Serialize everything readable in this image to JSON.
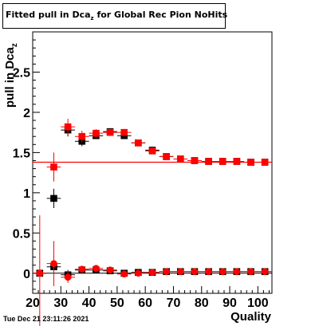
{
  "header": {
    "title_main": "Fitted pull in Dca",
    "title_sub": "z",
    "title_rest": " for Global Rec Pion NoHits"
  },
  "footer": {
    "timestamp": "Tue Dec 21 23:11:26 2021"
  },
  "colors": {
    "black_series": "#000000",
    "red_series": "#ff0000",
    "reference_line": "#ff0000"
  },
  "chart_data": {
    "type": "scatter",
    "title": "Fitted pull in Dca_z for Global Rec Pion NoHits",
    "xlabel": "Quality",
    "ylabel": "pull in Dca_z",
    "xlim": [
      20,
      105
    ],
    "ylim": [
      -0.25,
      3.0
    ],
    "x_ticks": [
      20,
      30,
      40,
      50,
      60,
      70,
      80,
      90,
      100
    ],
    "x_tick_labels": [
      "20",
      "30",
      "40",
      "50",
      "60",
      "70",
      "80",
      "90",
      "100"
    ],
    "y_ticks": [
      0,
      0.5,
      1,
      1.5,
      2,
      2.5
    ],
    "y_tick_labels": [
      "0",
      "0.5",
      "1",
      "1.5",
      "2",
      "2.5"
    ],
    "reference_line_y": 1.38,
    "series": [
      {
        "marker": "square",
        "color": "#000000",
        "x": [
          27.5,
          32.5,
          37.5,
          42.5,
          47.5,
          52.5,
          57.5,
          62.5,
          67.5,
          72.5,
          77.5,
          82.5,
          87.5,
          92.5,
          97.5,
          102.5
        ],
        "y": [
          0.93,
          1.78,
          1.64,
          1.71,
          1.76,
          1.71,
          1.62,
          1.53,
          1.45,
          1.42,
          1.4,
          1.39,
          1.39,
          1.39,
          1.38,
          1.38
        ],
        "yerr": [
          0.12,
          0.08,
          0.06,
          0.04,
          0.04,
          0.03,
          0.03,
          0.02,
          0.02,
          0.02,
          0.01,
          0.01,
          0.01,
          0.01,
          0.01,
          0.01
        ]
      },
      {
        "marker": "square",
        "color": "#ff0000",
        "x": [
          27.5,
          32.5,
          37.5,
          42.5,
          47.5,
          52.5,
          57.5,
          62.5,
          67.5,
          72.5,
          77.5,
          82.5,
          87.5,
          92.5,
          97.5,
          102.5
        ],
        "y": [
          1.32,
          1.82,
          1.7,
          1.74,
          1.75,
          1.75,
          1.62,
          1.52,
          1.45,
          1.42,
          1.4,
          1.39,
          1.39,
          1.39,
          1.38,
          1.38
        ],
        "yerr": [
          0.18,
          0.1,
          0.07,
          0.05,
          0.04,
          0.04,
          0.03,
          0.02,
          0.02,
          0.02,
          0.01,
          0.01,
          0.01,
          0.01,
          0.01,
          0.01
        ]
      },
      {
        "marker": "square",
        "color": "#000000",
        "x": [
          22.5,
          27.5,
          32.5,
          37.5,
          42.5,
          47.5,
          52.5,
          57.5,
          62.5,
          67.5,
          72.5,
          77.5,
          82.5,
          87.5,
          92.5,
          97.5,
          102.5
        ],
        "y": [
          0.0,
          0.08,
          -0.02,
          0.04,
          0.04,
          0.03,
          0.0,
          0.01,
          0.01,
          0.02,
          0.02,
          0.02,
          0.02,
          0.02,
          0.02,
          0.02,
          0.02
        ],
        "yerr": [
          0.0,
          0.08,
          0.06,
          0.04,
          0.03,
          0.02,
          0.02,
          0.02,
          0.01,
          0.01,
          0.01,
          0.01,
          0.01,
          0.01,
          0.01,
          0.01,
          0.01
        ]
      },
      {
        "marker": "circle",
        "color": "#ff0000",
        "x": [
          22.5,
          27.5,
          32.5,
          37.5,
          42.5,
          47.5,
          52.5,
          57.5,
          62.5,
          67.5,
          72.5,
          77.5,
          82.5,
          87.5,
          92.5,
          97.5,
          102.5
        ],
        "y": [
          0.0,
          0.12,
          -0.05,
          0.05,
          0.06,
          0.04,
          -0.01,
          0.0,
          0.01,
          0.02,
          0.02,
          0.02,
          0.02,
          0.02,
          0.02,
          0.02,
          0.02
        ],
        "yerr": [
          0.72,
          0.28,
          0.07,
          0.04,
          0.03,
          0.03,
          0.02,
          0.02,
          0.01,
          0.01,
          0.01,
          0.01,
          0.01,
          0.01,
          0.01,
          0.01,
          0.01
        ]
      }
    ]
  }
}
